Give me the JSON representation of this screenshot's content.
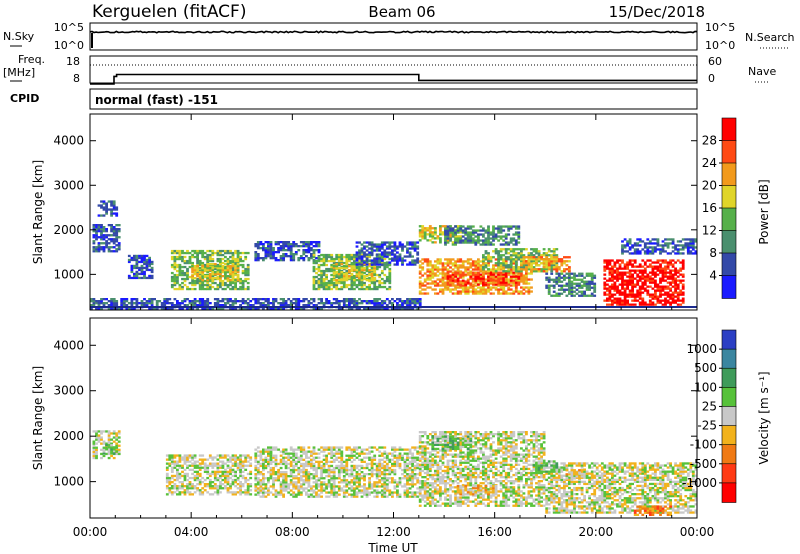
{
  "header": {
    "station": "Kerguelen (fitACF)",
    "beam": "Beam 06",
    "date": "15/Dec/2018"
  },
  "nsky_panel": {
    "label": "N.Sky",
    "left_ticks": [
      "10^5",
      "10^0"
    ],
    "right_ticks": [
      "10^5",
      "10^0"
    ],
    "right_label": "N.Search",
    "right_legend_line": "dotted"
  },
  "freq_panel": {
    "label_line1": "Freq.",
    "label_line2": "[MHz]",
    "left_ticks": [
      "18",
      "8"
    ],
    "right_ticks": [
      "60",
      "0"
    ],
    "right_label": "Nave",
    "right_legend_line": "dotted",
    "cpid_label": "CPID",
    "cpid_text": "normal (fast) -151",
    "freq_steps": [
      {
        "from": 0.0,
        "to": 0.95,
        "value": 9.5
      },
      {
        "from": 0.95,
        "to": 1.05,
        "value": 12.3
      },
      {
        "from": 1.05,
        "to": 13.0,
        "value": 13.0
      },
      {
        "from": 13.0,
        "to": 24.0,
        "value": 10.8
      }
    ],
    "nave_level": 40
  },
  "x_axis": {
    "label": "Time UT",
    "ticks": [
      "00:00",
      "04:00",
      "08:00",
      "12:00",
      "16:00",
      "20:00",
      "00:00"
    ]
  },
  "power_panel": {
    "ylabel": "Slant Range [km]",
    "y_ticks": [
      "1000",
      "2000",
      "3000",
      "4000"
    ],
    "cbar_label": "Power [dB]",
    "cbar_ticks": [
      "4",
      "8",
      "12",
      "16",
      "20",
      "24",
      "28"
    ],
    "cbar_colors": [
      "#1a1aff",
      "#3349a8",
      "#4a8f6e",
      "#56b04a",
      "#e0d52a",
      "#f29a1c",
      "#ff4a14",
      "#ff0000"
    ]
  },
  "velocity_panel": {
    "ylabel": "Slant Range [km]",
    "y_ticks": [
      "1000",
      "2000",
      "3000",
      "4000"
    ],
    "cbar_label": "Velocity [m s⁻¹]",
    "cbar_ticks": [
      "1000",
      "500",
      "100",
      "25",
      "-25",
      "-100",
      "-500",
      "-1000"
    ],
    "cbar_colors": [
      "#2b3fc4",
      "#3b86a0",
      "#3f9b5a",
      "#57c23a",
      "#c8c8c8",
      "#f2b21c",
      "#f07a14",
      "#ff3a14",
      "#ff0000"
    ]
  },
  "chart_data": {
    "type": "heatmap",
    "x": {
      "unit": "hours UT",
      "range": [
        0,
        24
      ]
    },
    "y": {
      "unit": "km",
      "range": [
        200,
        4600
      ]
    },
    "power_regions": [
      {
        "t0": 0.1,
        "t1": 1.2,
        "r0": 1500,
        "r1": 2100,
        "level": 1
      },
      {
        "t0": 0.3,
        "t1": 1.0,
        "r0": 2300,
        "r1": 2650,
        "level": 1
      },
      {
        "t0": 1.5,
        "t1": 2.5,
        "r0": 900,
        "r1": 1400,
        "level": 1
      },
      {
        "t0": 3.2,
        "t1": 6.2,
        "r0": 650,
        "r1": 1550,
        "level": 3
      },
      {
        "t0": 4.0,
        "t1": 5.8,
        "r0": 850,
        "r1": 1250,
        "level": 4
      },
      {
        "t0": 6.5,
        "t1": 9.0,
        "r0": 1300,
        "r1": 1750,
        "level": 1
      },
      {
        "t0": 8.8,
        "t1": 11.8,
        "r0": 650,
        "r1": 1450,
        "level": 3
      },
      {
        "t0": 9.6,
        "t1": 11.2,
        "r0": 850,
        "r1": 1250,
        "level": 4
      },
      {
        "t0": 10.5,
        "t1": 12.9,
        "r0": 1200,
        "r1": 1700,
        "level": 1
      },
      {
        "t0": 13.0,
        "t1": 14.6,
        "r0": 1700,
        "r1": 2100,
        "level": 4
      },
      {
        "t0": 13.0,
        "t1": 17.5,
        "r0": 550,
        "r1": 1350,
        "level": 5
      },
      {
        "t0": 14.0,
        "t1": 17.0,
        "r0": 750,
        "r1": 1050,
        "level": 6
      },
      {
        "t0": 15.5,
        "t1": 18.5,
        "r0": 1050,
        "r1": 1550,
        "level": 3
      },
      {
        "t0": 17.0,
        "t1": 19.0,
        "r0": 1050,
        "r1": 1400,
        "level": 5
      },
      {
        "t0": 18.0,
        "t1": 20.0,
        "r0": 500,
        "r1": 1000,
        "level": 2
      },
      {
        "t0": 20.3,
        "t1": 23.5,
        "r0": 300,
        "r1": 1300,
        "level": 7
      },
      {
        "t0": 21.0,
        "t1": 24.0,
        "r0": 1450,
        "r1": 1800,
        "level": 1
      },
      {
        "t0": 14.0,
        "t1": 17.0,
        "r0": 1650,
        "r1": 2100,
        "level": 2
      },
      {
        "t0": 0.0,
        "t1": 13.0,
        "r0": 200,
        "r1": 450,
        "level": 1
      }
    ],
    "velocity_regions": [
      {
        "t0": 0.1,
        "t1": 1.2,
        "r0": 1500,
        "r1": 2100,
        "level": 4
      },
      {
        "t0": 3.0,
        "t1": 6.3,
        "r0": 700,
        "r1": 1600,
        "level": 4
      },
      {
        "t0": 6.5,
        "t1": 12.9,
        "r0": 650,
        "r1": 1750,
        "level": 4
      },
      {
        "t0": 13.0,
        "t1": 18.0,
        "r0": 450,
        "r1": 2100,
        "level": 4
      },
      {
        "t0": 18.0,
        "t1": 24.0,
        "r0": 300,
        "r1": 1400,
        "level": 4
      },
      {
        "t0": 13.5,
        "t1": 15.0,
        "r0": 1700,
        "r1": 2000,
        "level": 3
      },
      {
        "t0": 17.5,
        "t1": 18.5,
        "r0": 1200,
        "r1": 1450,
        "level": 3
      },
      {
        "t0": 18.8,
        "t1": 19.5,
        "r0": 1050,
        "r1": 1250,
        "level": 5
      },
      {
        "t0": 14.5,
        "t1": 16.0,
        "r0": 700,
        "r1": 900,
        "level": 5
      },
      {
        "t0": 21.5,
        "t1": 23.0,
        "r0": 250,
        "r1": 450,
        "level": 6
      },
      {
        "t0": 0.5,
        "t1": 1.0,
        "r0": 1600,
        "r1": 1800,
        "level": 3
      }
    ]
  }
}
